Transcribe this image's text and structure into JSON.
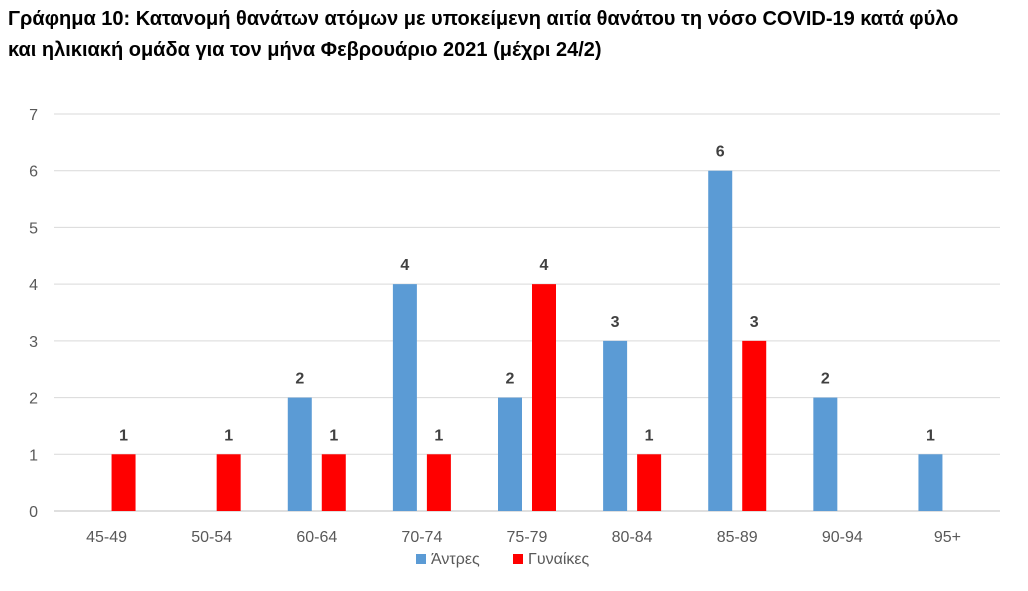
{
  "chart_data": {
    "type": "bar",
    "title_line1": "Γράφημα 10: Κατανομή θανάτων ατόμων με υποκείμενη αιτία θανάτου τη νόσο COVID-19 κατά φύλο",
    "title_line2": "και ηλικιακή ομάδα για τον μήνα Φεβρουάριο 2021 (μέχρι 24/2)",
    "categories": [
      "45-49",
      "50-54",
      "60-64",
      "70-74",
      "75-79",
      "80-84",
      "85-89",
      "90-94",
      "95+"
    ],
    "series": [
      {
        "name": "Άντρες",
        "color": "#5B9BD5",
        "values": [
          null,
          null,
          2,
          4,
          2,
          3,
          6,
          2,
          1
        ]
      },
      {
        "name": "Γυναίκες",
        "color": "#FF0000",
        "values": [
          1,
          1,
          1,
          1,
          4,
          1,
          3,
          null,
          null
        ]
      }
    ],
    "ylim": [
      0,
      7
    ],
    "yticks": [
      "0",
      "1",
      "2",
      "3",
      "4",
      "5",
      "6",
      "7"
    ],
    "grid": true,
    "legend_position": "bottom"
  }
}
